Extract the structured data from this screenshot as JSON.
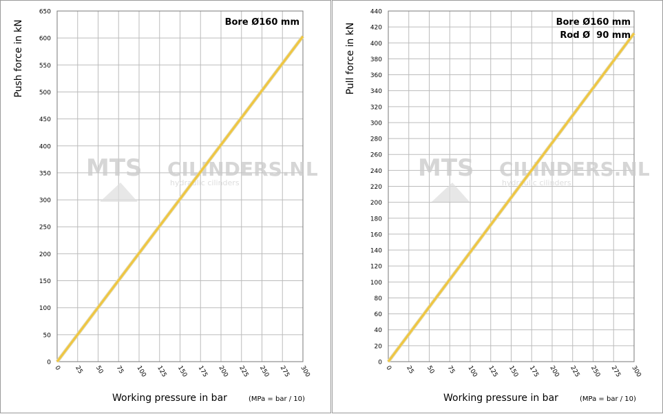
{
  "chart_data": [
    {
      "type": "line",
      "ylabel": "Push force in kN",
      "xlabel": "Working pressure in bar",
      "xlabel_note": "(MPa = bar / 10)",
      "annotations": [
        "Bore Ø160 mm"
      ],
      "watermark": [
        "MTS",
        "CILINDERS.NL",
        "hydraulic cilinders"
      ],
      "x": [
        0,
        300
      ],
      "series": [
        {
          "name": "Push force",
          "color": "#f0c640",
          "values": [
            0,
            603
          ]
        }
      ],
      "xlim": [
        0,
        300
      ],
      "xticks": [
        0,
        25,
        50,
        75,
        100,
        125,
        150,
        175,
        200,
        225,
        250,
        275,
        300
      ],
      "ylim": [
        0,
        650
      ],
      "yticks": [
        0,
        50,
        100,
        150,
        200,
        250,
        300,
        350,
        400,
        450,
        500,
        550,
        600,
        650
      ],
      "grid": true
    },
    {
      "type": "line",
      "ylabel": "Pull force in kN",
      "xlabel": "Working pressure in bar",
      "xlabel_note": "(MPa = bar / 10)",
      "annotations": [
        "Bore Ø160 mm",
        "Rod Ø  90 mm"
      ],
      "watermark": [
        "MTS",
        "CILINDERS.NL",
        "hydraulic cilinders"
      ],
      "x": [
        0,
        300
      ],
      "series": [
        {
          "name": "Pull force",
          "color": "#f0c640",
          "values": [
            0,
            412
          ]
        }
      ],
      "xlim": [
        0,
        300
      ],
      "xticks": [
        0,
        25,
        50,
        75,
        100,
        125,
        150,
        175,
        200,
        225,
        250,
        275,
        300
      ],
      "ylim": [
        0,
        440
      ],
      "yticks": [
        0,
        20,
        40,
        60,
        80,
        100,
        120,
        140,
        160,
        180,
        200,
        220,
        240,
        260,
        280,
        300,
        320,
        340,
        360,
        380,
        400,
        420,
        440
      ],
      "grid": true
    }
  ]
}
